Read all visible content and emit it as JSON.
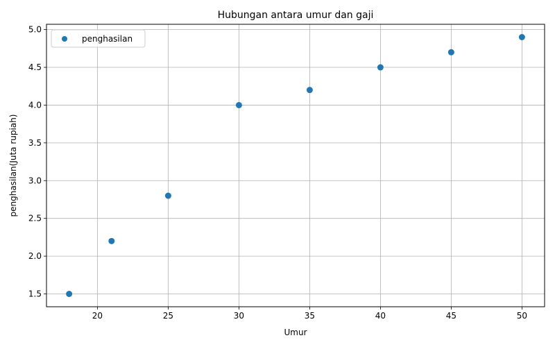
{
  "chart_data": {
    "type": "scatter",
    "title": "Hubungan antara umur dan gaji",
    "xlabel": "Umur",
    "ylabel": "penghasilan(Juta rupiah)",
    "xlim": [
      16.4,
      51.6
    ],
    "ylim": [
      1.33,
      5.07
    ],
    "xticks": [
      20,
      25,
      30,
      35,
      40,
      45,
      50
    ],
    "yticks": [
      1.5,
      2.0,
      2.5,
      3.0,
      3.5,
      4.0,
      4.5,
      5.0
    ],
    "xtick_labels": [
      "20",
      "25",
      "30",
      "35",
      "40",
      "45",
      "50"
    ],
    "ytick_labels": [
      "1.5",
      "2.0",
      "2.5",
      "3.0",
      "3.5",
      "4.0",
      "4.5",
      "5.0"
    ],
    "grid": true,
    "legend_position": "top-left",
    "series": [
      {
        "name": "penghasilan",
        "color": "#1f77b4",
        "x": [
          18,
          21,
          25,
          30,
          35,
          40,
          45,
          50
        ],
        "y": [
          1.5,
          2.2,
          2.8,
          4.0,
          4.2,
          4.5,
          4.7,
          4.9
        ]
      }
    ]
  }
}
